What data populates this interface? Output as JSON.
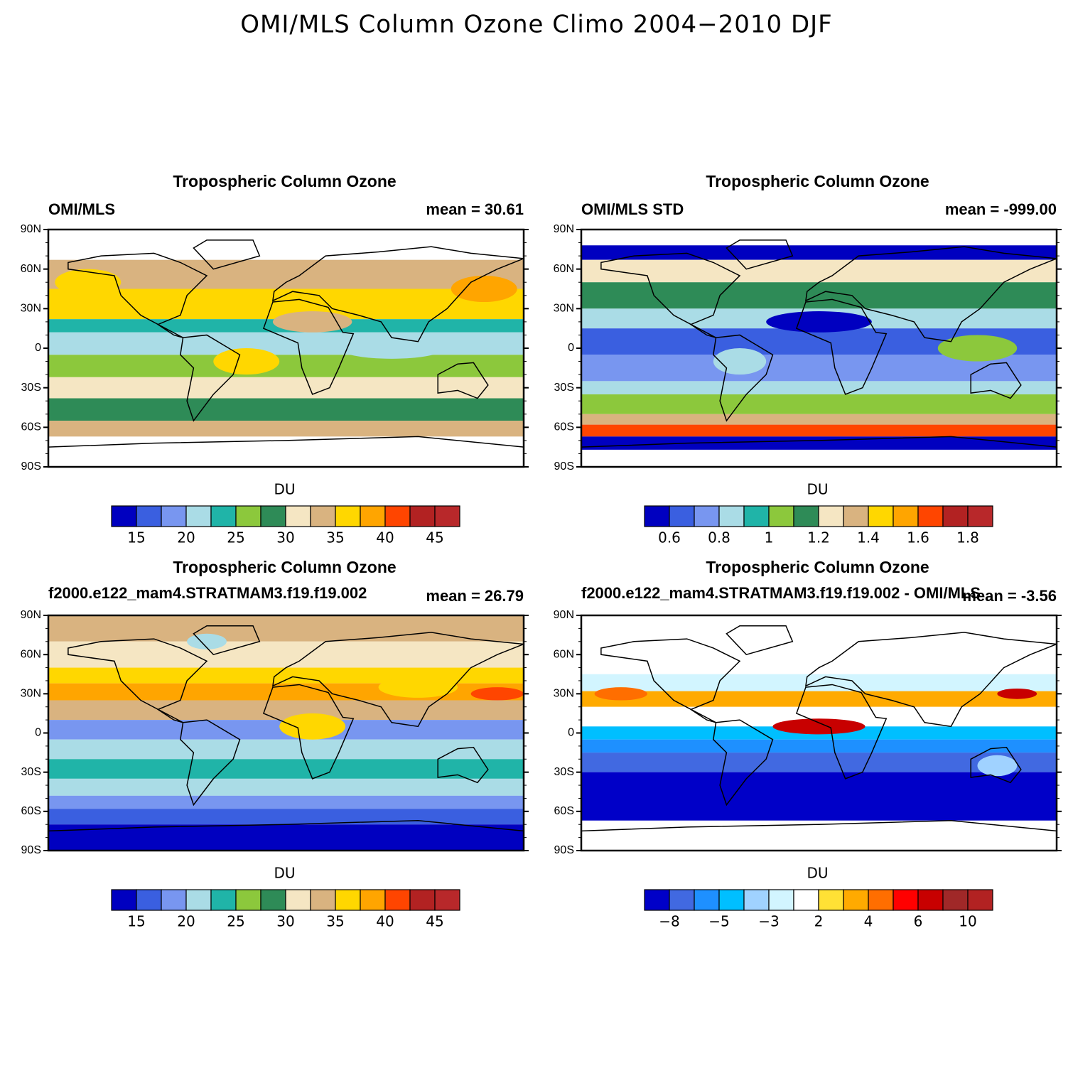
{
  "title": "OMI/MLS Column Ozone Climo 2004−2010 DJF",
  "panels": [
    {
      "title": "Tropospheric Column Ozone",
      "left": "OMI/MLS",
      "right": "mean =  30.61",
      "yticks": [
        "90N",
        "60N",
        "30N",
        "0",
        "30S",
        "60S",
        "90S"
      ],
      "colorbar": {
        "label": "DU",
        "labels": [
          "15",
          "20",
          "25",
          "30",
          "35",
          "40",
          "45"
        ],
        "colors": [
          "#0000c0",
          "#3a5fe0",
          "#7896f0",
          "#aadce6",
          "#20b4a8",
          "#8cc83c",
          "#2e8b57",
          "#f5e6c3",
          "#d9b380",
          "#ffd700",
          "#ffa500",
          "#ff4500",
          "#b22222",
          "#b8282a"
        ]
      }
    },
    {
      "title": "Tropospheric Column Ozone",
      "left": "OMI/MLS STD",
      "right": "mean = -999.00",
      "yticks": [
        "90N",
        "60N",
        "30N",
        "0",
        "30S",
        "60S",
        "90S"
      ],
      "colorbar": {
        "label": "DU",
        "labels": [
          "0.6",
          "0.8",
          "1",
          "1.2",
          "1.4",
          "1.6",
          "1.8"
        ],
        "colors": [
          "#0000c0",
          "#3a5fe0",
          "#7896f0",
          "#aadce6",
          "#20b4a8",
          "#8cc83c",
          "#2e8b57",
          "#f5e6c3",
          "#d9b380",
          "#ffd700",
          "#ffa500",
          "#ff4500",
          "#b22222",
          "#b8282a"
        ]
      }
    },
    {
      "title": "Tropospheric Column Ozone",
      "left": "f2000.e122_mam4.STRATMAM3.f19.f19.002",
      "right": "mean =  26.79",
      "yticks": [
        "90N",
        "60N",
        "30N",
        "0",
        "30S",
        "60S",
        "90S"
      ],
      "colorbar": {
        "label": "DU",
        "labels": [
          "15",
          "20",
          "25",
          "30",
          "35",
          "40",
          "45"
        ],
        "colors": [
          "#0000c0",
          "#3a5fe0",
          "#7896f0",
          "#aadce6",
          "#20b4a8",
          "#8cc83c",
          "#2e8b57",
          "#f5e6c3",
          "#d9b380",
          "#ffd700",
          "#ffa500",
          "#ff4500",
          "#b22222",
          "#b8282a"
        ]
      }
    },
    {
      "title": "Tropospheric Column Ozone",
      "left": "f2000.e122_mam4.STRATMAM3.f19.f19.002 - OMI/MLS",
      "right": "mean = -3.56",
      "yticks": [
        "90N",
        "60N",
        "30N",
        "0",
        "30S",
        "60S",
        "90S"
      ],
      "colorbar": {
        "label": "DU",
        "labels": [
          "−8",
          "−5",
          "−3",
          "2",
          "4",
          "6",
          "10"
        ],
        "colors": [
          "#0000c8",
          "#4169e1",
          "#1e90ff",
          "#00bfff",
          "#a0d2ff",
          "#d2f5ff",
          "#ffffff",
          "#ffe135",
          "#ffaa00",
          "#ff6e00",
          "#ff0000",
          "#c80000",
          "#a02828",
          "#b22222"
        ]
      }
    }
  ]
}
